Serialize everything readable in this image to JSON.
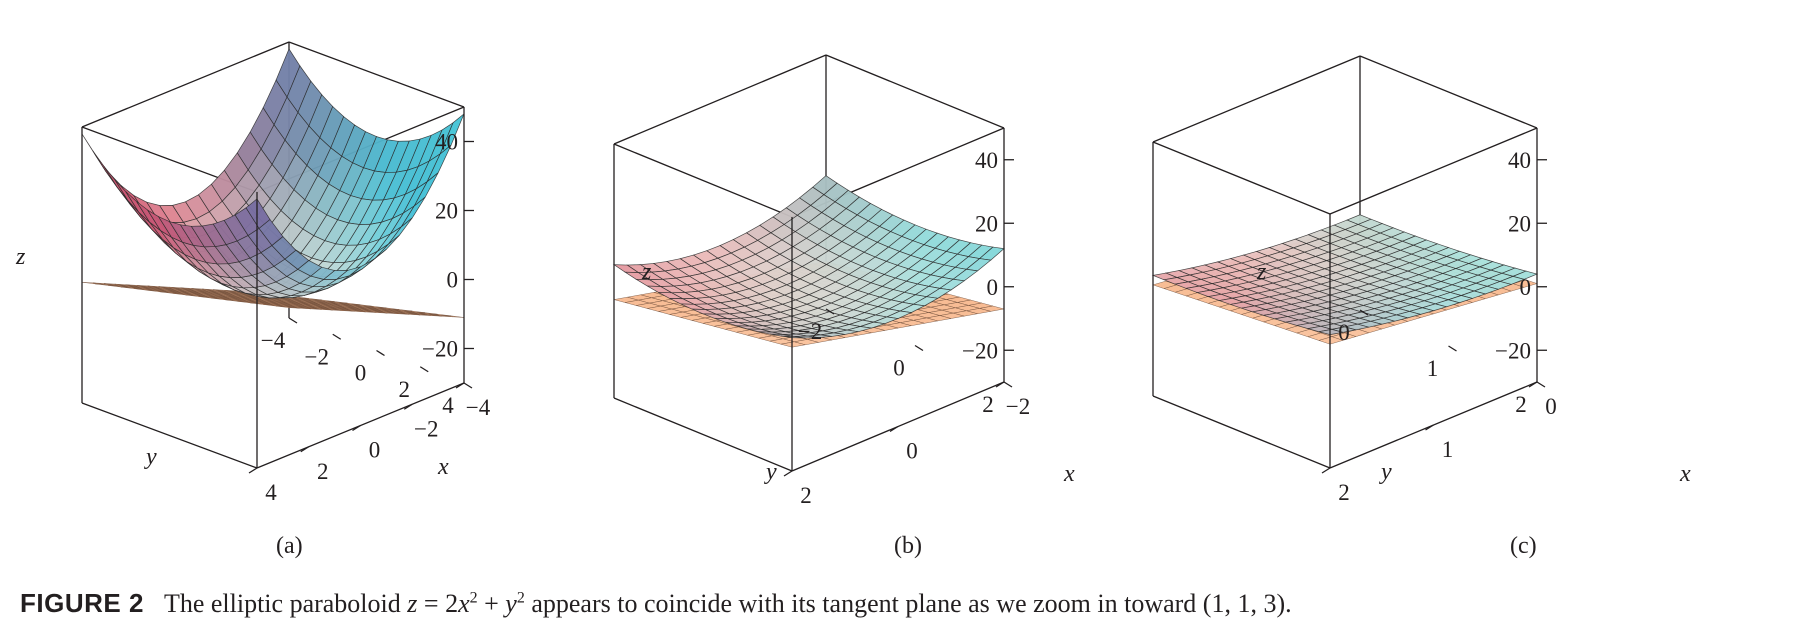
{
  "figure": {
    "label": "FIGURE 2",
    "caption_pre": "The elliptic paraboloid",
    "equation": {
      "lhs": "z",
      "rhs_a": "2",
      "var1": "x",
      "exp1": "2",
      "plus": "+",
      "var2": "y",
      "exp2": "2"
    },
    "caption_post": "appears to coincide with its tangent plane as we zoom in toward (1, 1, 3)."
  },
  "panels": [
    {
      "id": "a",
      "label": "(a)",
      "z_label": "z",
      "x_label": "x",
      "y_label": "y",
      "z_ticks": [
        "40",
        "20",
        "0",
        "−20"
      ],
      "y_ticks": [
        "−4",
        "−2",
        "0",
        "2",
        "4"
      ],
      "x_ticks": [
        "4",
        "2",
        "0",
        "−2",
        "−4"
      ],
      "surface": "z = 2x^2 + y^2",
      "tangent_plane": "z = 4x + 2y − 3",
      "x_range": [
        -4,
        4
      ],
      "y_range": [
        -4,
        4
      ],
      "z_range": [
        -30,
        50
      ]
    },
    {
      "id": "b",
      "label": "(b)",
      "z_label": "z",
      "x_label": "x",
      "y_label": "y",
      "z_ticks": [
        "40",
        "20",
        "0",
        "−20"
      ],
      "y_ticks": [
        "−2",
        "0",
        "2"
      ],
      "x_ticks": [
        "2",
        "0",
        "−2"
      ],
      "surface": "z = 2x^2 + y^2",
      "tangent_plane": "z = 4x + 2y − 3",
      "x_range": [
        -2,
        2
      ],
      "y_range": [
        -2,
        2
      ],
      "z_range": [
        -30,
        50
      ]
    },
    {
      "id": "c",
      "label": "(c)",
      "z_label": "z",
      "x_label": "x",
      "y_label": "y",
      "z_ticks": [
        "40",
        "20",
        "0",
        "−20"
      ],
      "y_ticks": [
        "0",
        "1",
        "2"
      ],
      "x_ticks": [
        "2",
        "1",
        "0"
      ],
      "surface": "z = 2x^2 + y^2",
      "tangent_plane": "z = 4x + 2y − 3",
      "x_range": [
        0,
        2
      ],
      "y_range": [
        0,
        2
      ],
      "z_range": [
        -30,
        50
      ]
    }
  ],
  "colors": {
    "surface_low": "#f4f1e2",
    "surface_pink": "#d9576f",
    "surface_purple": "#6d5a9e",
    "surface_blue": "#3cc4dc",
    "surface_teal": "#5fd6c6",
    "plane": "#f7b58a"
  }
}
